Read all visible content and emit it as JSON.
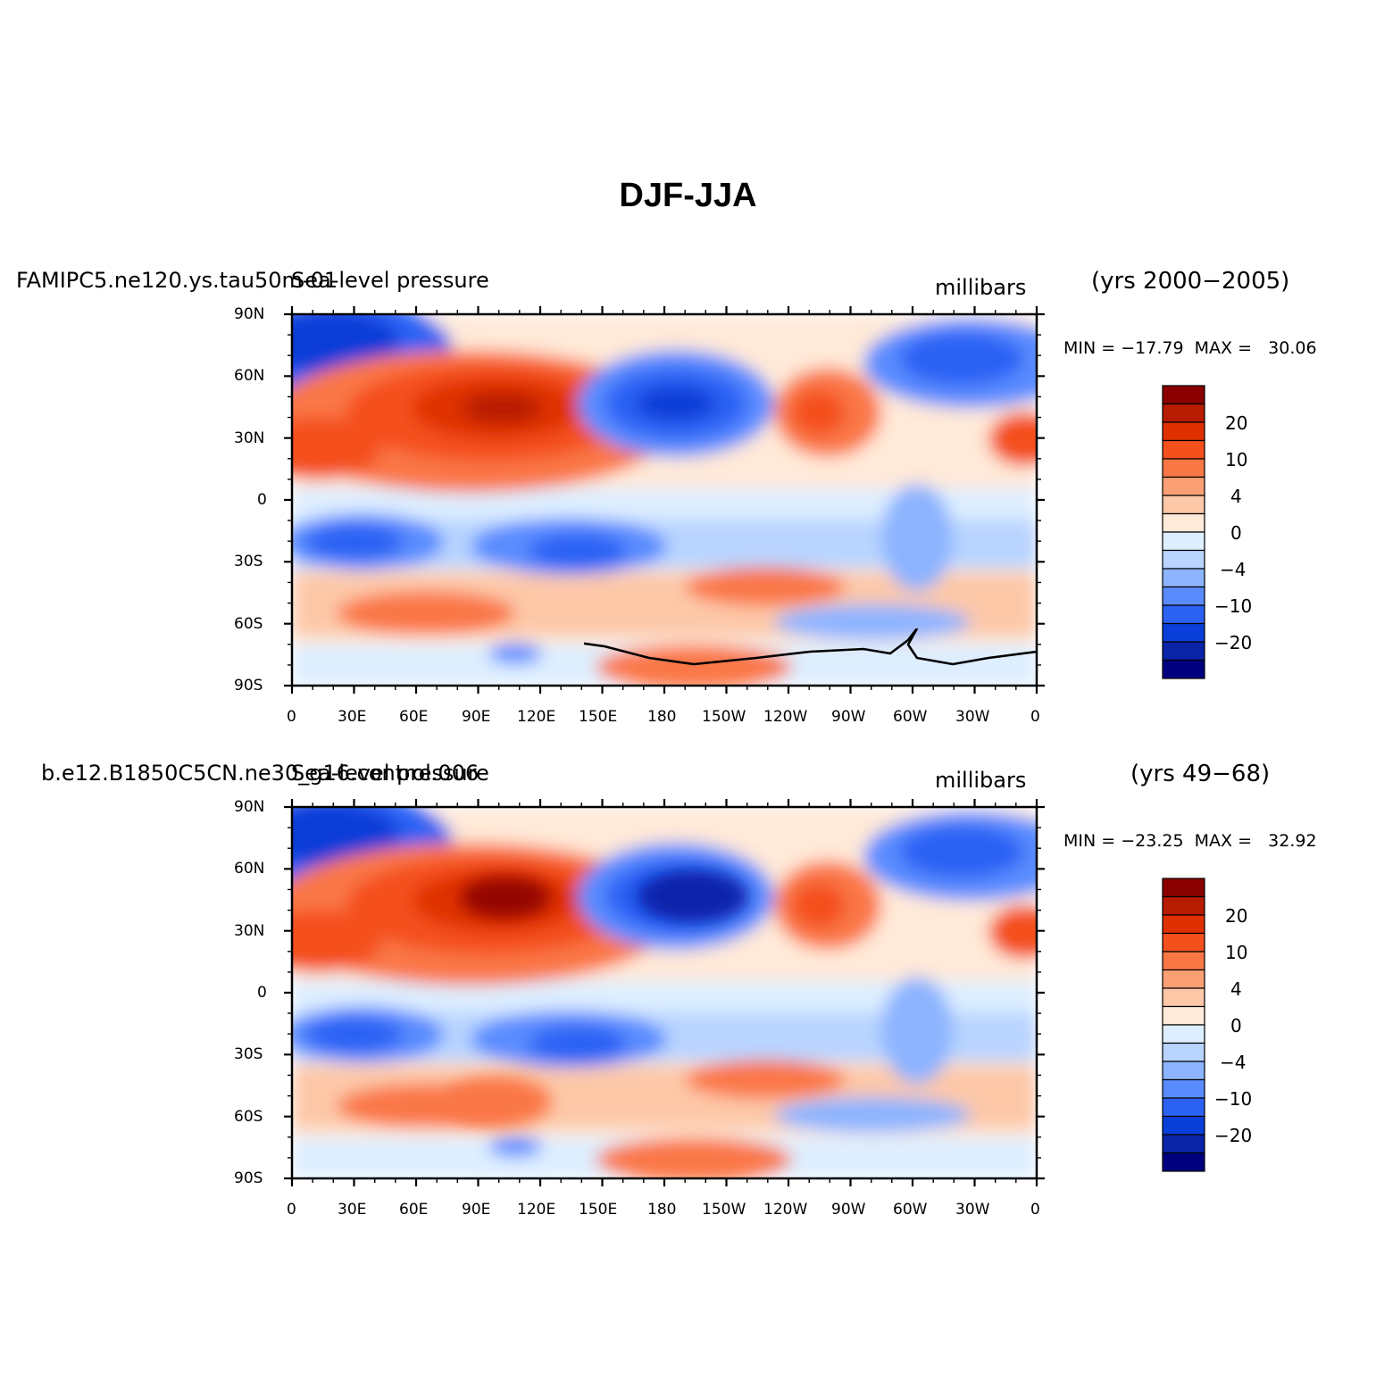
{
  "title": "DJF-JJA",
  "panels": [
    {
      "case_name": "FAMIPC5.ne120.ys.tau50m-01",
      "variable": "Sea-level pressure",
      "units": "millibars",
      "years": "(yrs 2000−2005)",
      "min_label": "MIN = ",
      "min_value": "−17.79",
      "max_label": "MAX = ",
      "max_value": "30.06"
    },
    {
      "case_name": "b.e12.B1850C5CN.ne30_g16.control.006",
      "variable": "Sea-level pressure",
      "units": "millibars",
      "years": "(yrs 49−68)",
      "min_label": "MIN = ",
      "min_value": "−23.25",
      "max_label": "MAX = ",
      "max_value": "32.92"
    }
  ],
  "axes": {
    "lat_ticks": [
      "90N",
      "60N",
      "30N",
      "0",
      "30S",
      "60S",
      "90S"
    ],
    "lon_ticks": [
      "0",
      "30E",
      "60E",
      "90E",
      "120E",
      "150E",
      "180",
      "150W",
      "120W",
      "90W",
      "60W",
      "30W",
      "0"
    ]
  },
  "colorbar": {
    "labels": [
      "20",
      "10",
      "4",
      "0",
      "−4",
      "−10",
      "−20"
    ],
    "colors": [
      "#8B0000",
      "#B71C00",
      "#E03000",
      "#F4501E",
      "#FA7746",
      "#FBA074",
      "#FDC8A8",
      "#FFE9D8",
      "#DDEEFF",
      "#B8D4FF",
      "#8CB4FF",
      "#5A8CFF",
      "#2C62F4",
      "#0A3ED8",
      "#0A24A8",
      "#00007F"
    ]
  }
}
